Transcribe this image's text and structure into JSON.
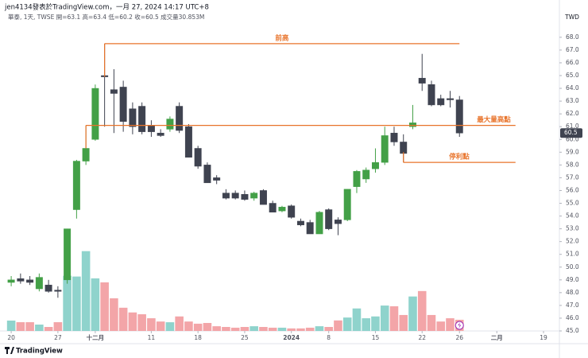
{
  "chart_data": {
    "type": "candlestick",
    "header": "jen4134發表於TradingView.com，一月 27, 2024 14:17 UTC+8",
    "subtitle": "華泰, 1天, TWSE  開=63.1 高=63.4 低=60.2 收=60.5 成交量30.853M",
    "currency": "TWD",
    "brand": "TradingView",
    "up_color": "#43a047",
    "down_color": "#3f4350",
    "volume_up_color": "#8fd3cc",
    "volume_down_color": "#f3a5a8",
    "annotation_color": "#e8732a",
    "open": [
      48.8,
      49.1,
      49.0,
      48.3,
      48.6,
      48.2,
      49.0,
      54.5,
      58.3,
      60.0,
      65.0,
      63.9,
      64.1,
      62.4,
      62.6,
      61.1,
      60.5,
      60.8,
      62.6,
      61.0,
      59.3,
      58.0,
      57.0,
      55.8,
      55.8,
      55.7,
      55.4,
      56.0,
      55.0,
      54.4,
      54.8,
      53.6,
      53.5,
      52.6,
      54.5,
      53.7,
      53.7,
      56.3,
      56.9,
      57.7,
      58.2,
      60.5,
      59.8,
      61.0,
      64.8,
      64.3,
      63.2,
      63.2,
      63.1
    ],
    "high": [
      49.3,
      49.5,
      49.3,
      49.5,
      49.0,
      48.5,
      53.0,
      58.4,
      61.1,
      64.3,
      67.5,
      65.5,
      64.6,
      62.9,
      62.9,
      61.5,
      60.8,
      61.8,
      62.9,
      61.2,
      59.5,
      58.2,
      57.2,
      56.1,
      56.0,
      56.0,
      55.9,
      56.1,
      55.2,
      54.8,
      54.9,
      53.8,
      53.7,
      54.4,
      54.6,
      53.9,
      56.1,
      57.6,
      57.8,
      59.3,
      61.0,
      61.0,
      60.4,
      62.7,
      66.7,
      64.6,
      63.5,
      63.8,
      63.4
    ],
    "low": [
      48.5,
      48.7,
      48.6,
      48.1,
      48.0,
      47.6,
      48.7,
      53.8,
      58.0,
      59.9,
      61.0,
      60.5,
      60.6,
      60.4,
      60.4,
      60.2,
      60.2,
      60.6,
      60.5,
      58.6,
      57.7,
      56.6,
      56.5,
      55.3,
      55.3,
      55.2,
      55.2,
      54.9,
      54.3,
      54.3,
      53.8,
      53.2,
      52.6,
      52.6,
      52.9,
      52.5,
      53.6,
      55.8,
      56.6,
      57.4,
      58.0,
      59.5,
      58.2,
      60.8,
      63.8,
      62.6,
      62.6,
      62.5,
      60.2
    ],
    "close": [
      49.0,
      48.9,
      48.8,
      49.2,
      48.1,
      48.1,
      53.0,
      58.3,
      59.3,
      64.0,
      64.9,
      63.6,
      61.4,
      61.0,
      60.6,
      60.6,
      60.3,
      61.6,
      60.7,
      58.6,
      57.9,
      56.6,
      56.8,
      55.4,
      55.4,
      55.3,
      55.8,
      54.9,
      54.3,
      54.7,
      53.9,
      53.3,
      52.6,
      54.3,
      53.0,
      53.4,
      56.1,
      57.5,
      57.6,
      58.2,
      60.3,
      59.8,
      58.9,
      61.3,
      64.4,
      62.7,
      62.7,
      63.1,
      60.5
    ],
    "volume": [
      28.6,
      24.2,
      24.2,
      17.6,
      11,
      24.2,
      152,
      150,
      220,
      145,
      134,
      90,
      64,
      51,
      46,
      35,
      26,
      24,
      40,
      26,
      20,
      22,
      13,
      11,
      9,
      11,
      13,
      11,
      9,
      9,
      7,
      7,
      9,
      13,
      11,
      29,
      37,
      62,
      35,
      40,
      70,
      68,
      44,
      95,
      110,
      44,
      26,
      35,
      30.853
    ],
    "last_price": 60.5,
    "ylim": [
      45,
      69.05
    ],
    "volume_ylim": [
      0,
      250
    ],
    "xlim": [
      -1.2,
      58.7
    ],
    "yticks": [
      {
        "value": 68,
        "label": "68.0"
      },
      {
        "value": 67,
        "label": "67.0"
      },
      {
        "value": 66,
        "label": "66.0"
      },
      {
        "value": 65,
        "label": "65.0"
      },
      {
        "value": 64,
        "label": "64.0"
      },
      {
        "value": 63,
        "label": "63.0"
      },
      {
        "value": 62,
        "label": "62.0"
      },
      {
        "value": 61,
        "label": "61.0"
      },
      {
        "value": 60,
        "label": "60.0"
      },
      {
        "value": 59,
        "label": "59.0"
      },
      {
        "value": 58,
        "label": "58.0"
      },
      {
        "value": 57,
        "label": "57.0"
      },
      {
        "value": 56,
        "label": "56.0"
      },
      {
        "value": 55,
        "label": "55.0"
      },
      {
        "value": 54,
        "label": "54.0"
      },
      {
        "value": 53,
        "label": "53.0"
      },
      {
        "value": 52,
        "label": "52.0"
      },
      {
        "value": 51,
        "label": "51.0"
      },
      {
        "value": 50,
        "label": "50.0"
      },
      {
        "value": 49,
        "label": "49.0"
      },
      {
        "value": 48,
        "label": "48.0"
      },
      {
        "value": 47,
        "label": "47.0"
      },
      {
        "value": 46,
        "label": "46.0"
      },
      {
        "value": 45,
        "label": "45.0"
      }
    ],
    "xticks": [
      {
        "value": 0,
        "label": "20"
      },
      {
        "value": 5,
        "label": "27"
      },
      {
        "value": 9,
        "label": "十二月"
      },
      {
        "value": 15,
        "label": "11"
      },
      {
        "value": 20,
        "label": "18"
      },
      {
        "value": 25,
        "label": "25"
      },
      {
        "value": 30,
        "label": "2024"
      },
      {
        "value": 34,
        "label": "8"
      },
      {
        "value": 39,
        "label": "15"
      },
      {
        "value": 44,
        "label": "22"
      },
      {
        "value": 48,
        "label": "26"
      },
      {
        "value": 52,
        "label": "二月"
      },
      {
        "value": 57,
        "label": "19"
      }
    ],
    "annotations": [
      {
        "label": "前高",
        "value": 67.5,
        "start": 10,
        "end": 48,
        "anchor": 64.9,
        "label_at": "center"
      },
      {
        "label": "最大量高點",
        "value": 61.1,
        "start": 8,
        "end": 54,
        "anchor": 59.3,
        "label_at": "right"
      },
      {
        "label": "停利點",
        "value": 58.2,
        "start": 42,
        "end": 54,
        "anchor": 59.0,
        "label_at": "right-below"
      }
    ]
  }
}
